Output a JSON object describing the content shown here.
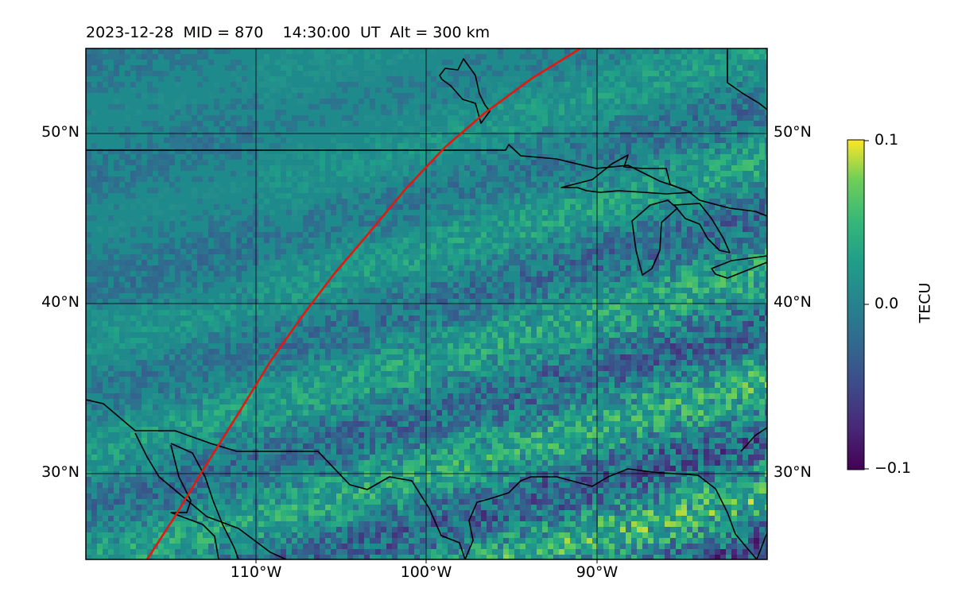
{
  "header": {
    "title": "2023-12-28  MID = 870    14:30:00  UT  Alt = 300 km"
  },
  "map": {
    "lat_labels_left": [
      "50°N",
      "40°N",
      "30°N"
    ],
    "lat_labels_right": [
      "50°N",
      "40°N",
      "30°N"
    ],
    "lon_labels_bottom": [
      "110°W",
      "100°W",
      "90°W"
    ],
    "lat_range": [
      25,
      55
    ],
    "lon_range": [
      -120,
      -80
    ],
    "gridlines": true,
    "track_color": "#e3180f",
    "coastline_color": "#000000"
  },
  "colorbar": {
    "label": "TECU",
    "ticks": [
      "0.1",
      "0.0",
      "−0.1"
    ],
    "range": [
      -0.1,
      0.1
    ],
    "colormap": "viridis"
  }
}
